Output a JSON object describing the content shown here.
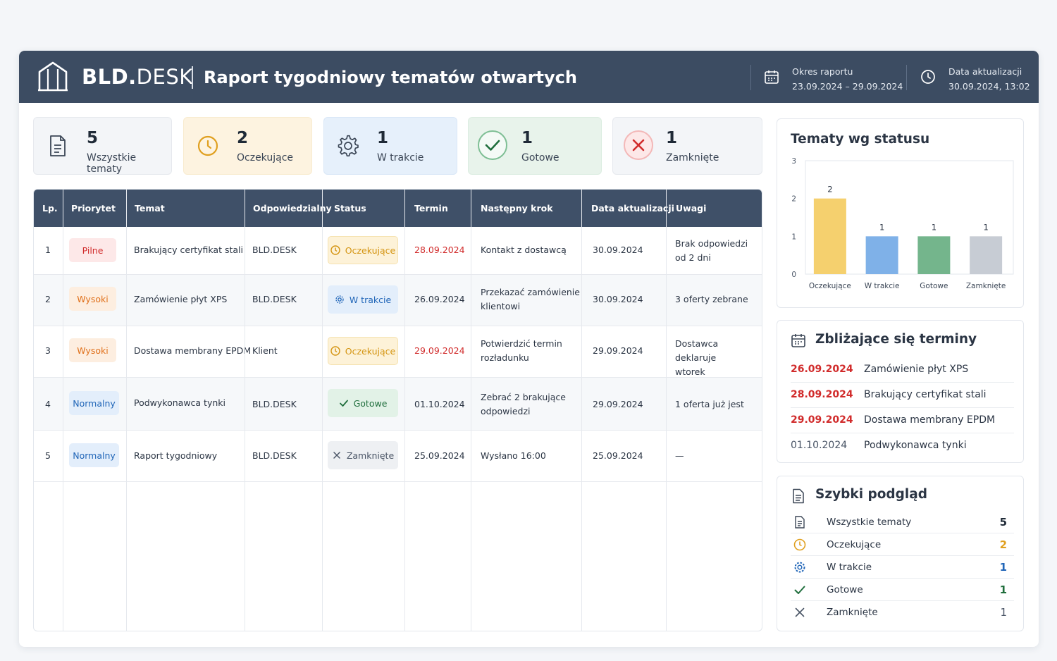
{
  "header": {
    "brand_bold": "BLD.",
    "brand_light": "DESK",
    "title": "Raport tygodniowy tematów otwartych",
    "period_label": "Okres raportu",
    "period_value": "23.09.2024 – 29.09.2024",
    "updated_label": "Data aktualizacji",
    "updated_value": "30.09.2024, 13:02",
    "icons": [
      "building-icon",
      "calendar-icon",
      "clock-icon"
    ]
  },
  "kpis": [
    {
      "value": "5",
      "label": "Wszystkie tematy",
      "icon": "document-icon",
      "bg": "#f3f5f8"
    },
    {
      "value": "2",
      "label": "Oczekujące",
      "icon": "clock-icon",
      "bg": "#fdf3e0"
    },
    {
      "value": "1",
      "label": "W trakcie",
      "icon": "gear-icon",
      "bg": "#e6f0fb"
    },
    {
      "value": "1",
      "label": "Gotowe",
      "icon": "check-icon",
      "bg": "#e8f3eb"
    },
    {
      "value": "1",
      "label": "Zamknięte",
      "icon": "close-icon",
      "bg": "#f3f5f8"
    }
  ],
  "table": {
    "headers": [
      "Lp.",
      "Priorytet",
      "Temat",
      "Odpowiedzialny",
      "Status",
      "Termin",
      "Następny krok",
      "Data aktualizacji",
      "Uwagi"
    ],
    "rows": [
      {
        "lp": "1",
        "priority": "Pilne",
        "topic": "Brakujący certyfikat stali",
        "owner": "BLD.DESK",
        "status": "Oczekujące",
        "due": "28.09.2024",
        "due_overdue": true,
        "next": [
          "Kontakt z dostawcą"
        ],
        "updated": "30.09.2024",
        "notes": [
          "Brak odpowiedzi",
          "od 2 dni"
        ]
      },
      {
        "lp": "2",
        "priority": "Wysoki",
        "topic": "Zamówienie płyt XPS",
        "owner": "BLD.DESK",
        "status": "W trakcie",
        "due": "26.09.2024",
        "due_overdue": false,
        "next": [
          "Przekazać zamówienie",
          "klientowi"
        ],
        "updated": "30.09.2024",
        "notes": [
          "3 oferty zebrane"
        ]
      },
      {
        "lp": "3",
        "priority": "Wysoki",
        "topic": "Dostawa membrany EPDM",
        "owner": "Klient",
        "status": "Oczekujące",
        "due": "29.09.2024",
        "due_overdue": true,
        "next": [
          "Potwierdzić termin",
          "rozładunku"
        ],
        "updated": "29.09.2024",
        "notes": [
          "Dostawca deklaruje",
          "wtorek"
        ]
      },
      {
        "lp": "4",
        "priority": "Normalny",
        "topic": "Podwykonawca tynki",
        "owner": "BLD.DESK",
        "status": "Gotowe",
        "due": "01.10.2024",
        "due_overdue": false,
        "next": [
          "Zebrać 2 brakujące",
          "odpowiedzi"
        ],
        "updated": "29.09.2024",
        "notes": [
          "1 oferta już jest"
        ]
      },
      {
        "lp": "5",
        "priority": "Normalny",
        "topic": "Raport tygodniowy",
        "owner": "BLD.DESK",
        "status": "Zamknięte",
        "due": "25.09.2024",
        "due_overdue": false,
        "next": [
          "Wysłano 16:00"
        ],
        "updated": "25.09.2024",
        "notes": [
          "—"
        ]
      }
    ]
  },
  "status_chart_panel": {
    "title": "Tematy wg statusu"
  },
  "chart_data": {
    "type": "bar",
    "categories": [
      "Oczekujące",
      "W trakcie",
      "Gotowe",
      "Zamknięte"
    ],
    "values": [
      2,
      1,
      1,
      1
    ],
    "colors": [
      "#f5d06e",
      "#7fb1e8",
      "#74b58c",
      "#c7ccd4"
    ],
    "yticks": [
      0,
      1,
      2,
      3
    ],
    "ylim": [
      0,
      3
    ],
    "grid": false,
    "data_labels": true
  },
  "deadlines": {
    "title": "Zbliżające się terminy",
    "icon": "calendar-icon",
    "items": [
      {
        "date": "26.09.2024",
        "text": "Zamówienie płyt XPS",
        "color": "#d12b2b"
      },
      {
        "date": "28.09.2024",
        "text": "Brakujący certyfikat stali",
        "color": "#d12b2b"
      },
      {
        "date": "29.09.2024",
        "text": "Dostawa membrany EPDM",
        "color": "#d12b2b"
      },
      {
        "date": "01.10.2024",
        "text": "Podwykonawca tynki",
        "color": "#4a5566"
      }
    ]
  },
  "quick": {
    "title": "Szybki podgląd",
    "icon": "document-icon",
    "items": [
      {
        "label": "Wszystkie tematy",
        "value": "5",
        "icon": "document-icon",
        "color": "#1f2a37"
      },
      {
        "label": "Oczekujące",
        "value": "2",
        "icon": "clock-icon",
        "color": "#e0a020"
      },
      {
        "label": "W trakcie",
        "value": "1",
        "icon": "gear-icon",
        "color": "#2166b8"
      },
      {
        "label": "Gotowe",
        "value": "1",
        "icon": "check-icon",
        "color": "#1f6e3c"
      },
      {
        "label": "Zamknięte",
        "value": "1",
        "icon": "close-icon",
        "color": "#4a5566"
      }
    ]
  }
}
